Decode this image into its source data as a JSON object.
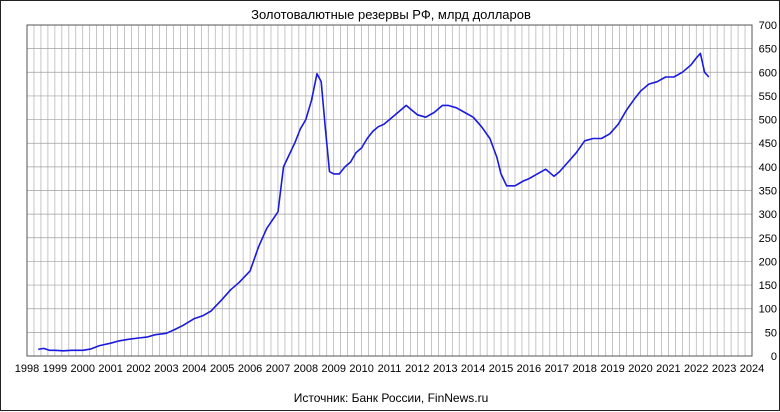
{
  "chart_data": {
    "type": "line",
    "title": "Золотовалютные резервы РФ, млрд долларов",
    "caption": "Источник: Банк России, FinNews.ru",
    "xlabel": "",
    "ylabel": "",
    "xlim": [
      1998,
      2024
    ],
    "ylim": [
      0,
      700
    ],
    "x_ticks": [
      1998,
      1999,
      2000,
      2001,
      2002,
      2003,
      2004,
      2005,
      2006,
      2007,
      2008,
      2009,
      2010,
      2011,
      2012,
      2013,
      2014,
      2015,
      2016,
      2017,
      2018,
      2019,
      2020,
      2021,
      2022,
      2023,
      2024
    ],
    "y_ticks": [
      0,
      50,
      100,
      150,
      200,
      250,
      300,
      350,
      400,
      450,
      500,
      550,
      600,
      650,
      700
    ],
    "y_axis_side": "right",
    "grid": true,
    "colors": {
      "line": "#1a1adf",
      "grid": "#a0a0a0"
    },
    "series": [
      {
        "x": [
          1998.4,
          1998.6,
          1998.8,
          1999.0,
          1999.3,
          1999.6,
          2000.0,
          2000.3,
          2000.6,
          2001.0,
          2001.3,
          2001.6,
          2002.0,
          2002.3,
          2002.6,
          2003.0,
          2003.3,
          2003.6,
          2004.0,
          2004.3,
          2004.6,
          2005.0,
          2005.3,
          2005.6,
          2006.0,
          2006.3,
          2006.6,
          2007.0,
          2007.2,
          2007.4,
          2007.6,
          2007.8,
          2008.0,
          2008.2,
          2008.4,
          2008.55,
          2008.7,
          2008.85,
          2009.0,
          2009.2,
          2009.4,
          2009.6,
          2009.8,
          2010.0,
          2010.2,
          2010.4,
          2010.6,
          2010.8,
          2011.0,
          2011.3,
          2011.6,
          2011.8,
          2012.0,
          2012.3,
          2012.6,
          2012.9,
          2013.1,
          2013.4,
          2013.7,
          2014.0,
          2014.3,
          2014.6,
          2014.85,
          2015.0,
          2015.2,
          2015.5,
          2015.8,
          2016.0,
          2016.3,
          2016.6,
          2016.9,
          2017.1,
          2017.4,
          2017.7,
          2018.0,
          2018.3,
          2018.6,
          2018.9,
          2019.2,
          2019.5,
          2019.8,
          2020.0,
          2020.3,
          2020.6,
          2020.9,
          2021.2,
          2021.5,
          2021.8,
          2022.0,
          2022.15,
          2022.3,
          2022.45
        ],
        "y": [
          14,
          16,
          12,
          12,
          11,
          12,
          12,
          15,
          22,
          27,
          32,
          35,
          38,
          40,
          45,
          48,
          56,
          65,
          79,
          85,
          95,
          120,
          140,
          155,
          180,
          230,
          270,
          305,
          400,
          425,
          450,
          480,
          500,
          540,
          597,
          580,
          480,
          390,
          385,
          385,
          400,
          410,
          430,
          440,
          460,
          475,
          485,
          490,
          500,
          515,
          530,
          520,
          510,
          505,
          515,
          530,
          530,
          525,
          515,
          505,
          485,
          460,
          420,
          385,
          360,
          360,
          370,
          375,
          385,
          395,
          380,
          390,
          410,
          430,
          455,
          460,
          460,
          470,
          490,
          520,
          545,
          560,
          575,
          580,
          590,
          590,
          600,
          615,
          630,
          640,
          600,
          590
        ]
      }
    ]
  }
}
